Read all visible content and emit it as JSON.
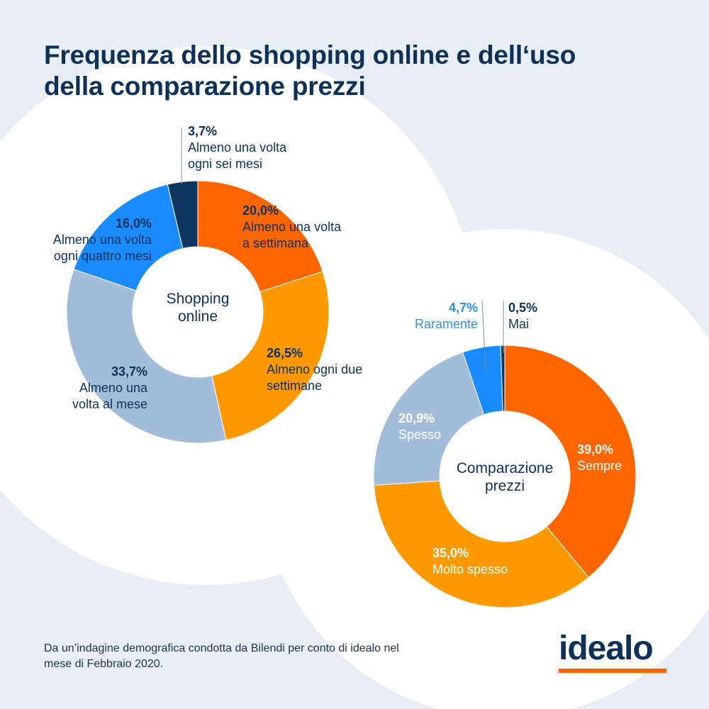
{
  "header": {
    "title_line1": "Frequenza dello shopping online e dell‘uso",
    "title_line2": "della comparazione prezzi"
  },
  "footer": {
    "note_line1": "Da un’indagine demografica condotta da Bilendi per conto di idealo nel",
    "note_line2": "mese di Febbraio 2020.",
    "logo": "idealo"
  },
  "colors": {
    "dark_blue": "#0f3560",
    "orange": "#ff6600",
    "light_orange": "#ff9900",
    "light_blue": "#a3bcd9",
    "blue": "#1a8cff",
    "text": "#0f3157",
    "accent_text": "#2f8fe8"
  },
  "chart_data": [
    {
      "type": "pie",
      "title": "Shopping online",
      "center_label": [
        "Shopping",
        "online"
      ],
      "slices": [
        {
          "label": "Almeno una volta a settimana",
          "label_lines": [
            "Almeno una volta",
            "a settimana"
          ],
          "value_label": "20,0%",
          "value": 20.0,
          "color": "#ff6600"
        },
        {
          "label": "Almeno ogni due settimane",
          "label_lines": [
            "Almeno ogni due",
            "settimane"
          ],
          "value_label": "26,5%",
          "value": 26.5,
          "color": "#ff9900"
        },
        {
          "label": "Almeno una volta al mese",
          "label_lines": [
            "Almeno una",
            "volta al mese"
          ],
          "value_label": "33,7%",
          "value": 33.7,
          "color": "#a3bcd9"
        },
        {
          "label": "Almeno una volta ogni quattro mesi",
          "label_lines": [
            "Almeno una volta",
            "ogni quattro mesi"
          ],
          "value_label": "16,0%",
          "value": 16.0,
          "color": "#1a8cff"
        },
        {
          "label": "Almeno una volta ogni sei mesi",
          "label_lines": [
            "Almeno una volta",
            "ogni sei mesi"
          ],
          "value_label": "3,7%",
          "value": 3.7,
          "color": "#0f3560"
        }
      ]
    },
    {
      "type": "pie",
      "title": "Comparazione prezzi",
      "center_label": [
        "Comparazione",
        "prezzi"
      ],
      "slices": [
        {
          "label": "Sempre",
          "label_lines": [
            "Sempre"
          ],
          "value_label": "39,0%",
          "value": 39.0,
          "color": "#ff6600"
        },
        {
          "label": "Molto spesso",
          "label_lines": [
            "Molto spesso"
          ],
          "value_label": "35,0%",
          "value": 35.0,
          "color": "#ff9900"
        },
        {
          "label": "Spesso",
          "label_lines": [
            "Spesso"
          ],
          "value_label": "20,9%",
          "value": 20.9,
          "color": "#a3bcd9"
        },
        {
          "label": "Raramente",
          "label_lines": [
            "Raramente"
          ],
          "value_label": "4,7%",
          "value": 4.7,
          "color": "#1a8cff"
        },
        {
          "label": "Mai",
          "label_lines": [
            "Mai"
          ],
          "value_label": "0,5%",
          "value": 0.5,
          "color": "#0f3560"
        }
      ]
    }
  ]
}
